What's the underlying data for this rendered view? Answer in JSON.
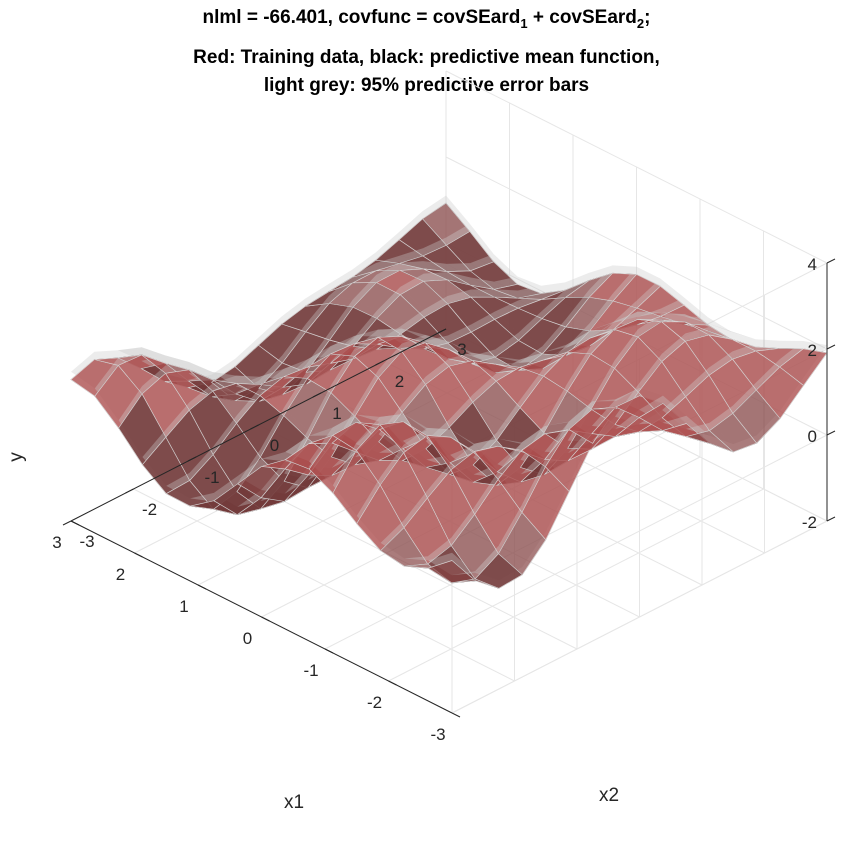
{
  "title": {
    "line1_prefix": "nlml = -66.401, covfunc = covSEard",
    "sub1": "1",
    "line1_middle": " + covSEard",
    "sub2": "2",
    "line1_suffix": ";",
    "line2": "Red: Training data, black: predictive mean function,",
    "line3": "light grey: 95% predictive error bars"
  },
  "chart_data": {
    "type": "surface",
    "xlabel": "x1",
    "ylabel": "x2",
    "zlabel": "y",
    "xlim": [
      -3,
      3
    ],
    "ylim": [
      -3,
      3
    ],
    "zlim": [
      -2,
      4
    ],
    "x_ticks": [
      "-3",
      "-2",
      "-1",
      "0",
      "1",
      "2",
      "3"
    ],
    "y_ticks": [
      "-3",
      "-2",
      "-1",
      "0",
      "1",
      "2",
      "3"
    ],
    "z_ticks": [
      "-2",
      "0",
      "2",
      "4"
    ],
    "grid": true,
    "colors": {
      "training_data": "#e06060",
      "predictive_mean": "#3a2626",
      "error_bars": "#c8c8c8",
      "grid": "#e6e6e6",
      "axis": "#262626"
    },
    "series": [
      {
        "name": "Training data"
      },
      {
        "name": "predictive mean function"
      },
      {
        "name": "95% predictive error bars"
      }
    ]
  }
}
